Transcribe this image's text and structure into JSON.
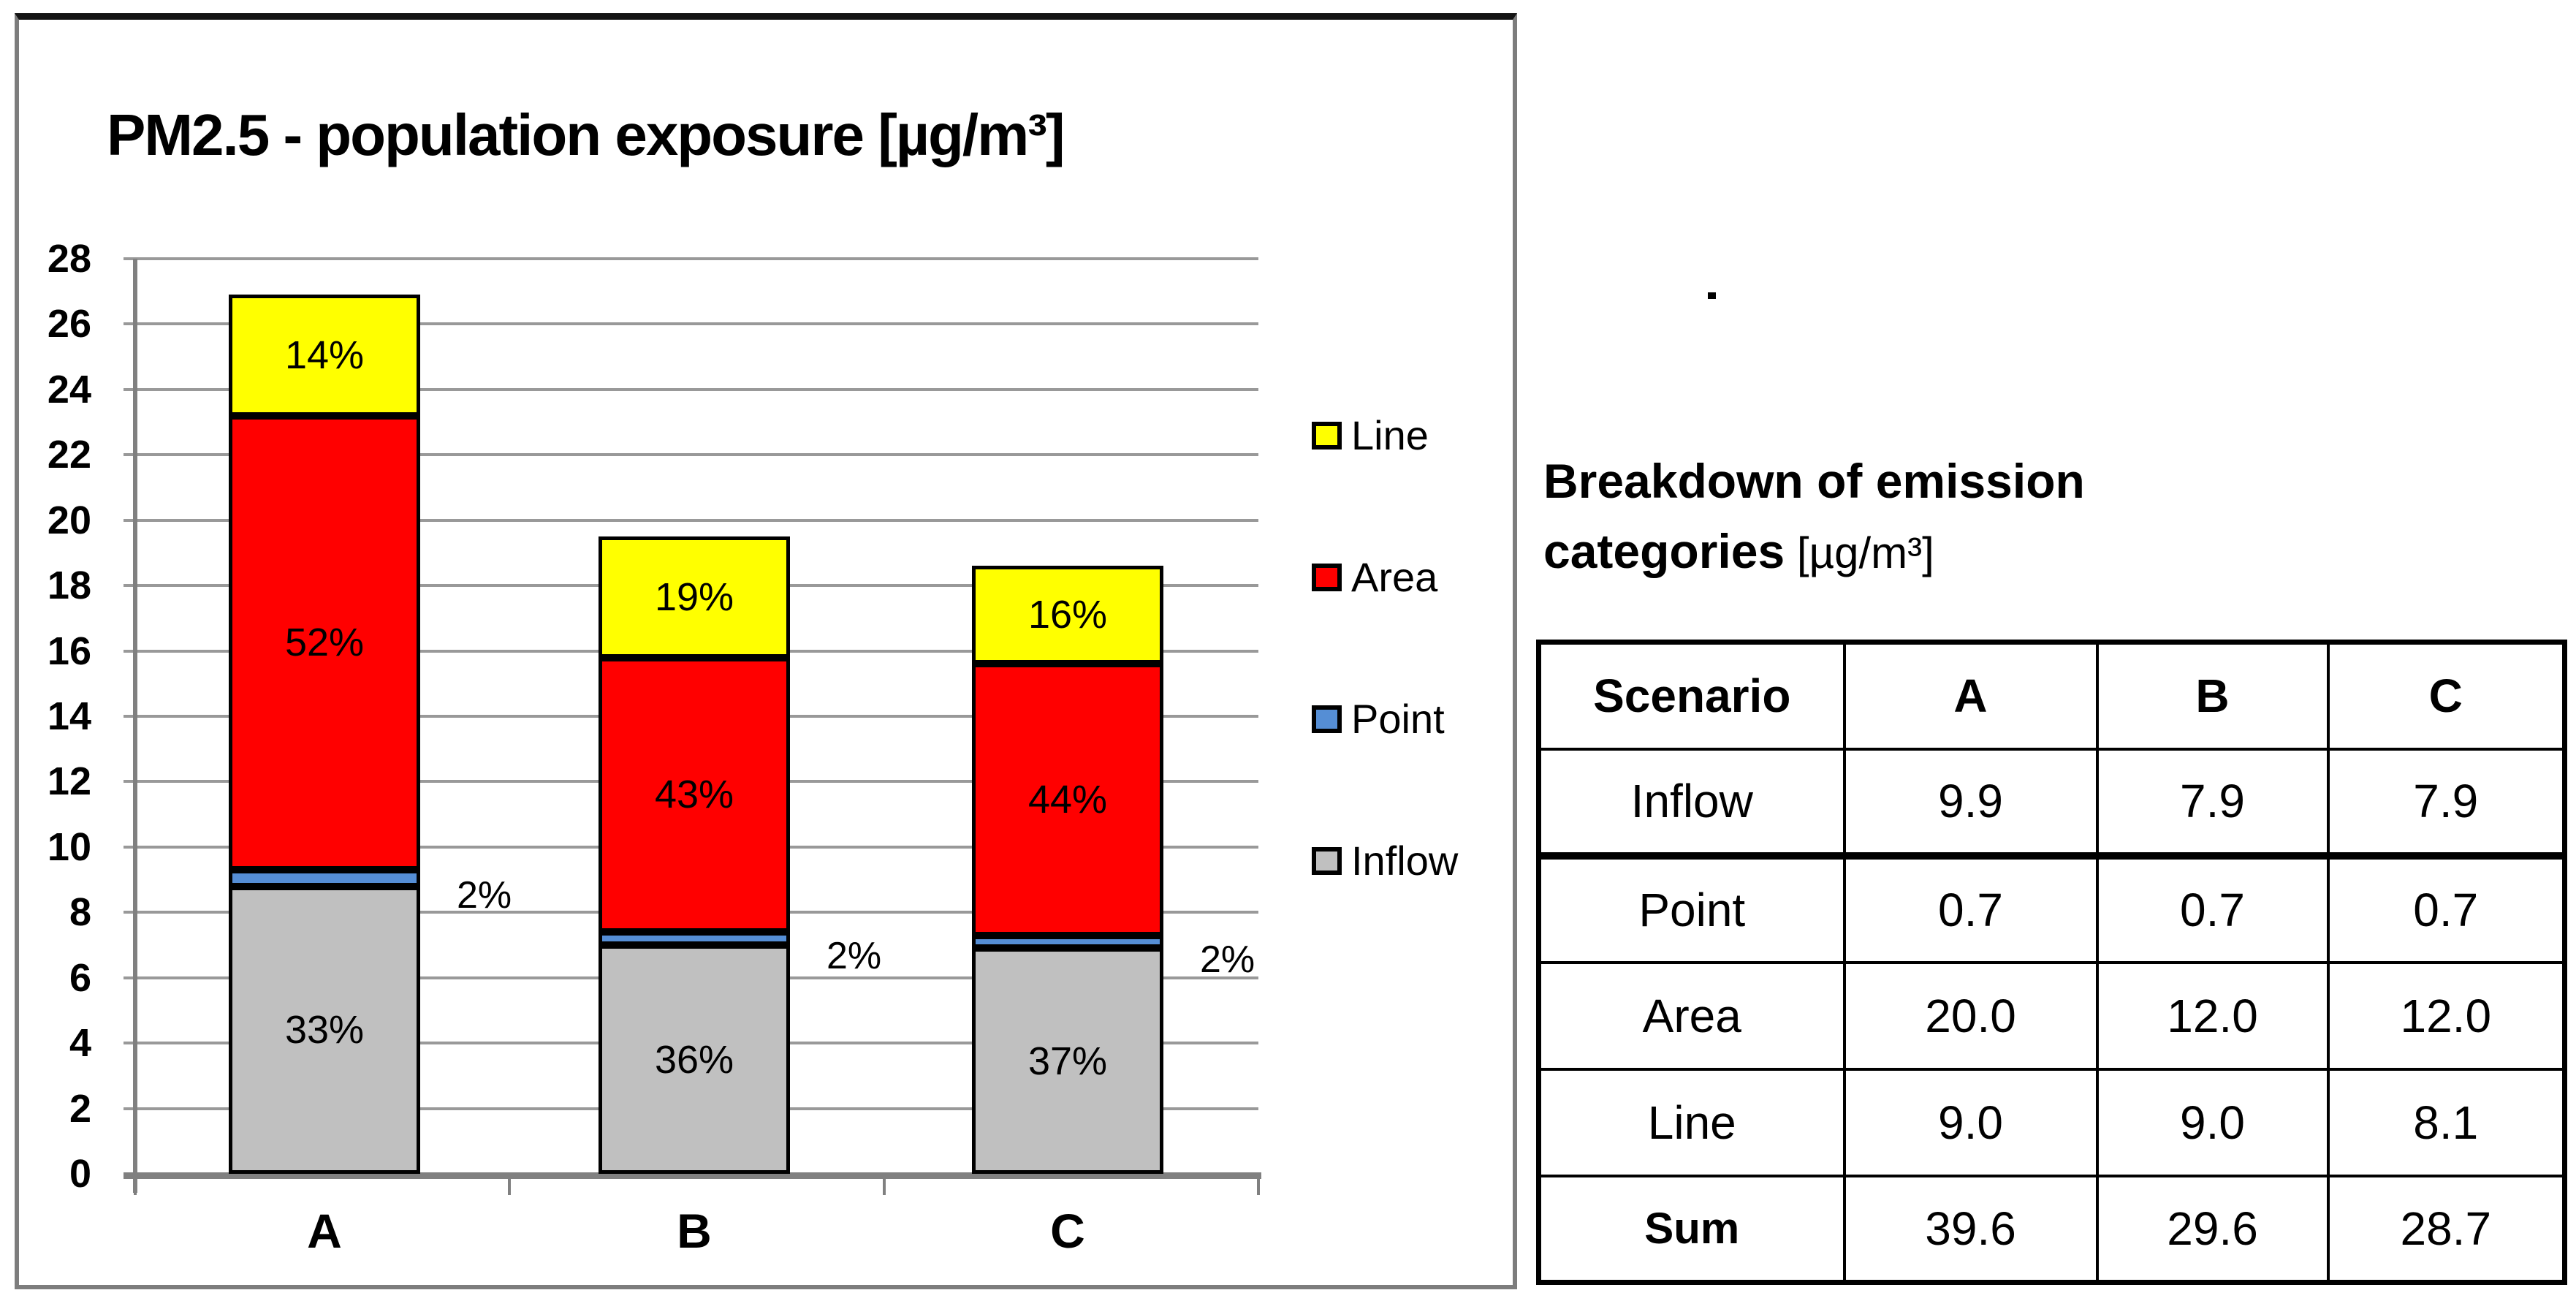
{
  "chart_data": {
    "type": "bar",
    "stacked": true,
    "title": "PM2.5 - population exposure [µg/m³]",
    "categories": [
      "A",
      "B",
      "C"
    ],
    "series": [
      {
        "name": "Inflow",
        "color": "#c0c0c0",
        "values": [
          8.8,
          7.0,
          6.9
        ],
        "percent_labels": [
          "33%",
          "36%",
          "37%"
        ]
      },
      {
        "name": "Point",
        "color": "#558ed5",
        "values": [
          0.5,
          0.4,
          0.4
        ],
        "percent_labels": [
          "2%",
          "2%",
          "2%"
        ]
      },
      {
        "name": "Area",
        "color": "#ff0000",
        "values": [
          13.9,
          8.4,
          8.3
        ],
        "percent_labels": [
          "52%",
          "43%",
          "44%"
        ]
      },
      {
        "name": "Line",
        "color": "#ffff00",
        "values": [
          3.7,
          3.7,
          3.0
        ],
        "percent_labels": [
          "14%",
          "19%",
          "16%"
        ]
      }
    ],
    "totals": [
      26.9,
      19.5,
      18.6
    ],
    "xlabel": "",
    "ylabel": "",
    "ylim": [
      0,
      28
    ],
    "y_tick_step": 2,
    "grid": true,
    "legend_position": "right",
    "legend_order_top_to_bottom": [
      "Line",
      "Area",
      "Point",
      "Inflow"
    ]
  },
  "panel": {
    "heading_line1": "Breakdown of emission",
    "heading_line2_bold": "categories",
    "heading_line2_unit": " [µg/m³]"
  },
  "table": {
    "headers": [
      "Scenario",
      "A",
      "B",
      "C"
    ],
    "rows": [
      [
        "Inflow",
        "9.9",
        "7.9",
        "7.9"
      ],
      [
        "Point",
        "0.7",
        "0.7",
        "0.7"
      ],
      [
        "Area",
        "20.0",
        "12.0",
        "12.0"
      ],
      [
        "Line",
        "9.0",
        "9.0",
        "8.1"
      ],
      [
        "Sum",
        "39.6",
        "29.6",
        "28.7"
      ]
    ],
    "thick_border_after_header": false,
    "thick_border_after_row_index": 0,
    "bold_row_label": "Sum"
  }
}
